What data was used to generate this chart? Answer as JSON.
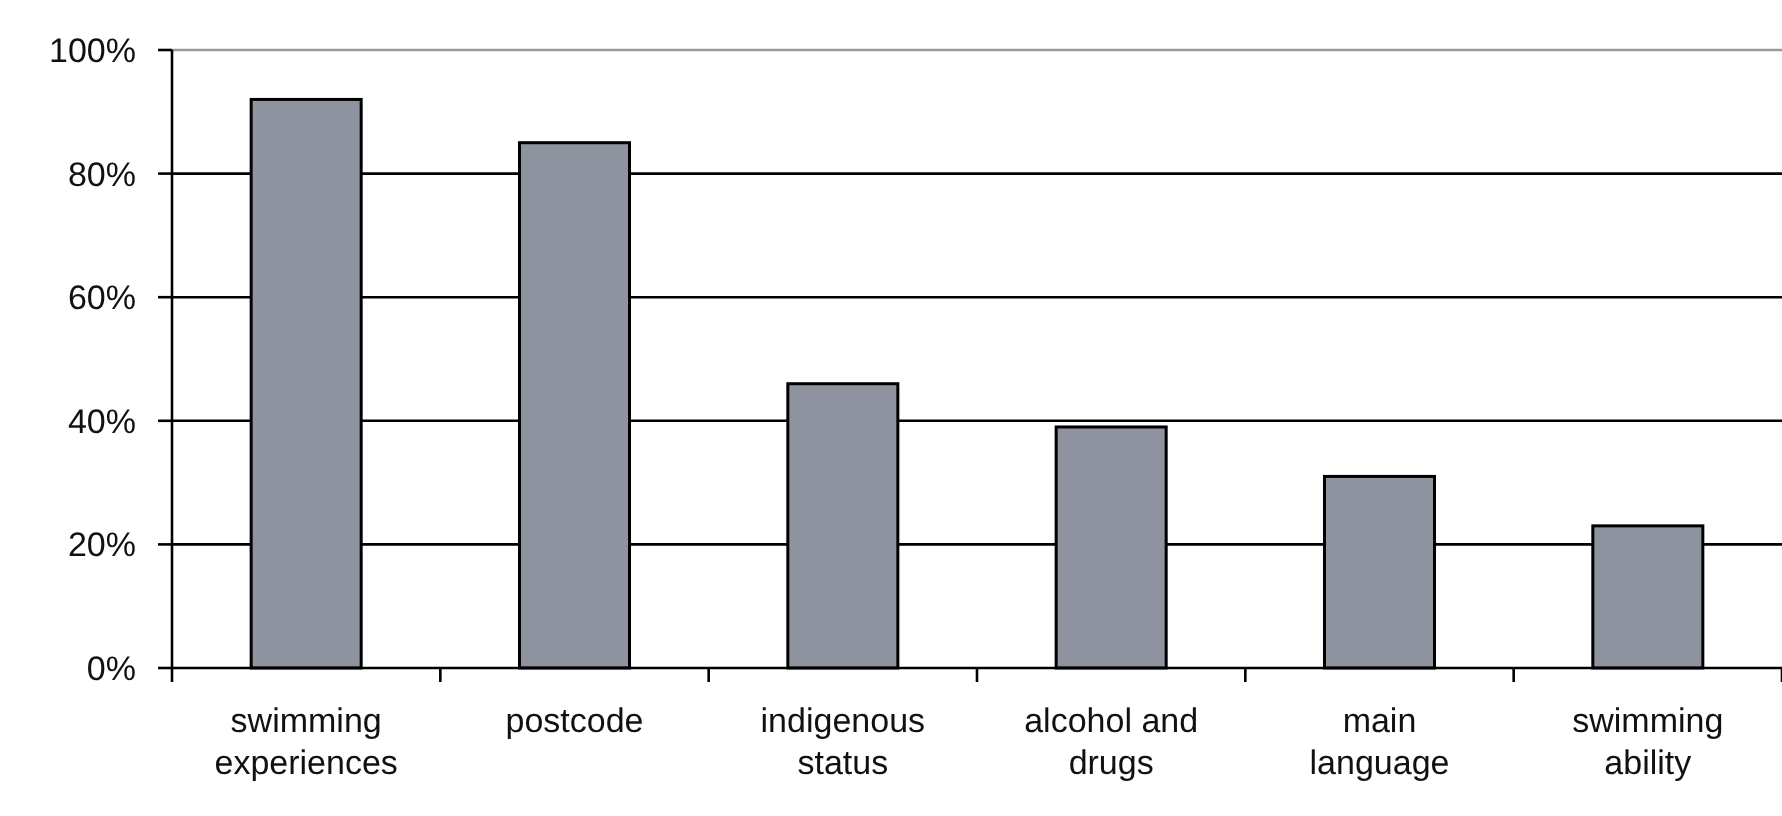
{
  "chart_data": {
    "type": "bar",
    "categories": [
      "swimming experiences",
      "postcode",
      "indigenous status",
      "alcohol and drugs",
      "main language",
      "swimming ability"
    ],
    "values": [
      92,
      85,
      46,
      39,
      31,
      23
    ],
    "color": "#8e939f",
    "ylim": [
      0,
      100
    ],
    "yticks": [
      {
        "value": 0,
        "label": "0%"
      },
      {
        "value": 20,
        "label": "20%"
      },
      {
        "value": 40,
        "label": "40%"
      },
      {
        "value": 60,
        "label": "60%"
      },
      {
        "value": 80,
        "label": "80%"
      },
      {
        "value": 100,
        "label": "100%"
      }
    ],
    "grid": "y"
  }
}
